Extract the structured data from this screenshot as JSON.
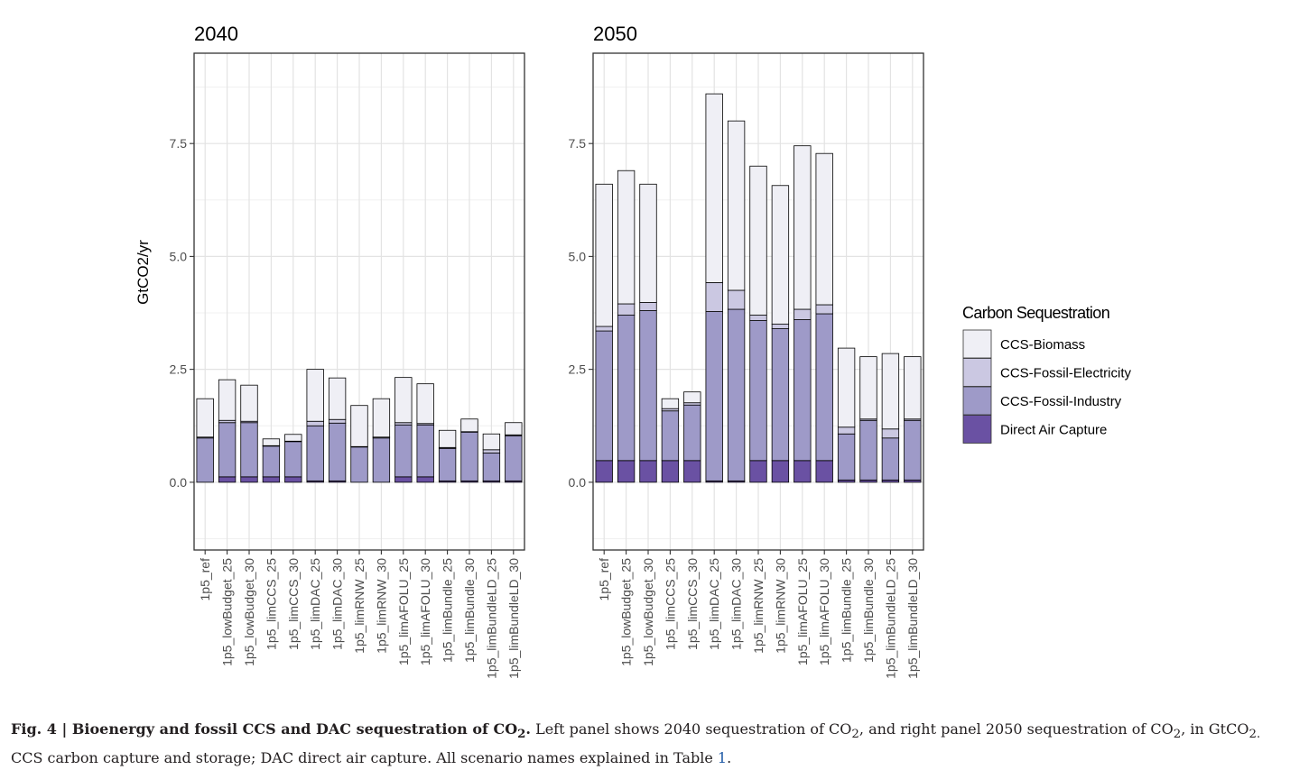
{
  "chart_data": {
    "type": "bar",
    "stacked": true,
    "ylabel": "GtCO2/yr",
    "ylim": [
      -1.5,
      9.5
    ],
    "yticks": [
      "0.0",
      "2.5",
      "5.0",
      "7.5"
    ],
    "grid": true,
    "legend": {
      "title": "Carbon Sequestration",
      "placement": "right",
      "entries": [
        "CCS-Biomass",
        "CCS-Fossil-Electricity",
        "CCS-Fossil-Industry",
        "Direct Air Capture"
      ]
    },
    "colors": {
      "CCS-Biomass": "#efeff5",
      "CCS-Fossil-Electricity": "#cbc8e2",
      "CCS-Fossil-Industry": "#9e9ac8",
      "Direct Air Capture": "#6a51a3"
    },
    "categories": [
      "1p5_ref",
      "1p5_lowBudget_25",
      "1p5_lowBudget_30",
      "1p5_limCCS_25",
      "1p5_limCCS_30",
      "1p5_limDAC_25",
      "1p5_limDAC_30",
      "1p5_limRNW_25",
      "1p5_limRNW_30",
      "1p5_limAFOLU_25",
      "1p5_limAFOLU_30",
      "1p5_limBundle_25",
      "1p5_limBundle_30",
      "1p5_limBundleLD_25",
      "1p5_limBundleLD_30"
    ],
    "panels": [
      {
        "title": "2040",
        "series": [
          {
            "name": "Direct Air Capture",
            "values": [
              0.0,
              0.12,
              0.12,
              0.12,
              0.12,
              0.03,
              0.03,
              0.0,
              0.0,
              0.12,
              0.12,
              0.03,
              0.03,
              0.03,
              0.03
            ]
          },
          {
            "name": "CCS-Fossil-Industry",
            "values": [
              0.98,
              1.2,
              1.2,
              0.68,
              0.78,
              1.22,
              1.28,
              0.78,
              0.98,
              1.15,
              1.15,
              0.72,
              1.08,
              0.62,
              1.0
            ]
          },
          {
            "name": "CCS-Fossil-Electricity",
            "values": [
              0.02,
              0.05,
              0.03,
              0.01,
              0.01,
              0.1,
              0.08,
              0.01,
              0.02,
              0.05,
              0.03,
              0.02,
              0.01,
              0.07,
              0.02
            ]
          },
          {
            "name": "CCS-Biomass",
            "values": [
              0.85,
              0.9,
              0.8,
              0.15,
              0.15,
              1.15,
              0.92,
              0.91,
              0.85,
              1.0,
              0.88,
              0.38,
              0.28,
              0.35,
              0.27
            ]
          }
        ]
      },
      {
        "title": "2050",
        "series": [
          {
            "name": "Direct Air Capture",
            "values": [
              0.48,
              0.48,
              0.48,
              0.48,
              0.48,
              0.03,
              0.03,
              0.48,
              0.48,
              0.48,
              0.48,
              0.05,
              0.05,
              0.05,
              0.05
            ]
          },
          {
            "name": "CCS-Fossil-Industry",
            "values": [
              2.87,
              3.22,
              3.32,
              1.1,
              1.23,
              3.75,
              3.8,
              3.1,
              2.92,
              3.12,
              3.25,
              1.02,
              1.32,
              0.93,
              1.32
            ]
          },
          {
            "name": "CCS-Fossil-Electricity",
            "values": [
              0.1,
              0.25,
              0.18,
              0.05,
              0.05,
              0.64,
              0.42,
              0.12,
              0.1,
              0.23,
              0.2,
              0.15,
              0.03,
              0.2,
              0.03
            ]
          },
          {
            "name": "CCS-Biomass",
            "values": [
              3.15,
              2.95,
              2.62,
              0.22,
              0.24,
              4.18,
              3.75,
              3.3,
              3.07,
              3.62,
              3.35,
              1.75,
              1.38,
              1.67,
              1.38
            ]
          }
        ]
      }
    ]
  },
  "caption": {
    "fig_label": "Fig. 4 | ",
    "title_text": "Bioenergy and fossil CCS and DAC sequestration of CO",
    "title_sub": "2",
    "title_end": ".",
    "body_1": " Left panel shows 2040 sequestration of CO",
    "sub_1": "2",
    "body_2": ", and right panel 2050 sequestration of CO",
    "sub_2": "2",
    "body_3": ", in GtCO",
    "sub_3": "2.",
    "body_4": " CCS carbon capture and storage; DAC direct air capture. All scenario names explained in Table ",
    "table_ref": "1",
    "body_5": "."
  }
}
